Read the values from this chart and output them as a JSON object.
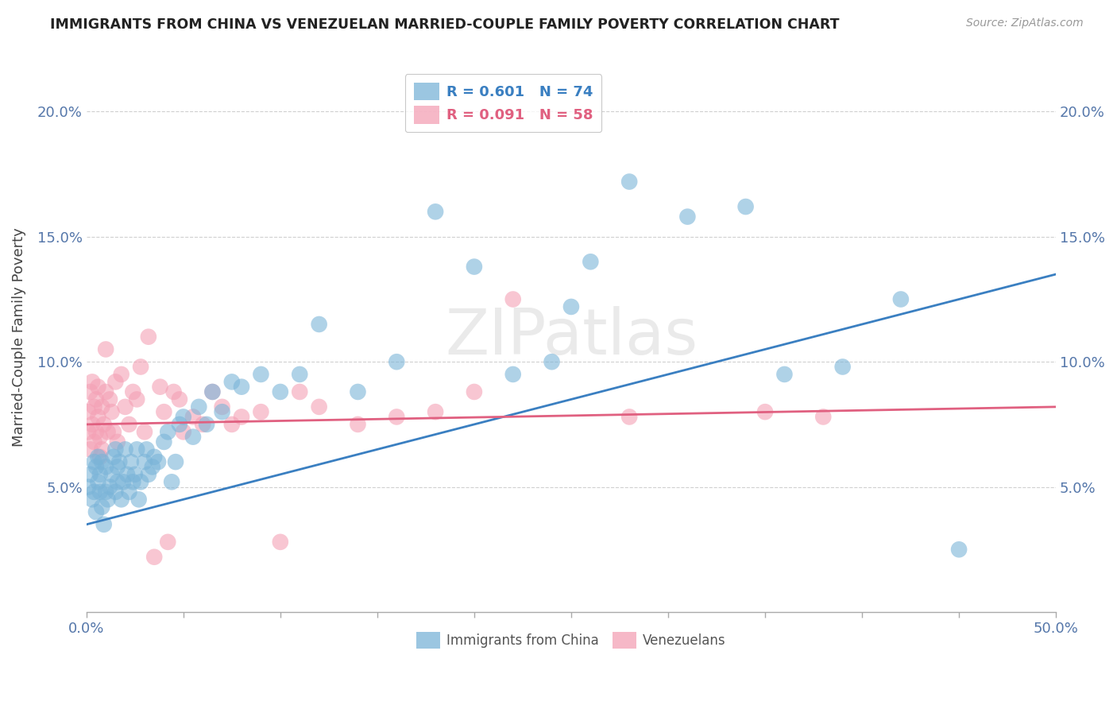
{
  "title": "IMMIGRANTS FROM CHINA VS VENEZUELAN MARRIED-COUPLE FAMILY POVERTY CORRELATION CHART",
  "source": "Source: ZipAtlas.com",
  "ylabel": "Married-Couple Family Poverty",
  "xlim": [
    0.0,
    0.5
  ],
  "ylim": [
    0.0,
    0.22
  ],
  "xticks": [
    0.0,
    0.05,
    0.1,
    0.15,
    0.2,
    0.25,
    0.3,
    0.35,
    0.4,
    0.45,
    0.5
  ],
  "yticks": [
    0.05,
    0.1,
    0.15,
    0.2
  ],
  "ytick_labels": [
    "5.0%",
    "10.0%",
    "15.0%",
    "20.0%"
  ],
  "china_color": "#7ab4d8",
  "venezuela_color": "#f4a0b5",
  "china_line_color": "#3a7fc1",
  "venezuela_line_color": "#e06080",
  "china_R": 0.601,
  "china_N": 74,
  "venezuela_R": 0.091,
  "venezuela_N": 58,
  "legend_label_china": "Immigrants from China",
  "legend_label_venezuela": "Venezuelans",
  "china_trend_start_y": 0.035,
  "china_trend_end_y": 0.135,
  "venezuela_trend_start_y": 0.075,
  "venezuela_trend_end_y": 0.082,
  "china_scatter_x": [
    0.001,
    0.002,
    0.003,
    0.004,
    0.004,
    0.005,
    0.005,
    0.006,
    0.006,
    0.007,
    0.007,
    0.008,
    0.008,
    0.009,
    0.01,
    0.01,
    0.011,
    0.012,
    0.013,
    0.014,
    0.015,
    0.015,
    0.016,
    0.016,
    0.017,
    0.018,
    0.019,
    0.02,
    0.021,
    0.022,
    0.023,
    0.024,
    0.025,
    0.026,
    0.027,
    0.028,
    0.03,
    0.031,
    0.032,
    0.034,
    0.035,
    0.037,
    0.04,
    0.042,
    0.044,
    0.046,
    0.048,
    0.05,
    0.055,
    0.058,
    0.062,
    0.065,
    0.07,
    0.075,
    0.08,
    0.09,
    0.1,
    0.11,
    0.12,
    0.14,
    0.16,
    0.18,
    0.2,
    0.22,
    0.24,
    0.26,
    0.28,
    0.31,
    0.34,
    0.36,
    0.39,
    0.42,
    0.45,
    0.25
  ],
  "china_scatter_y": [
    0.05,
    0.055,
    0.045,
    0.06,
    0.048,
    0.04,
    0.058,
    0.052,
    0.062,
    0.048,
    0.055,
    0.042,
    0.06,
    0.035,
    0.058,
    0.048,
    0.045,
    0.05,
    0.055,
    0.062,
    0.065,
    0.048,
    0.052,
    0.058,
    0.06,
    0.045,
    0.052,
    0.065,
    0.055,
    0.048,
    0.06,
    0.052,
    0.055,
    0.065,
    0.045,
    0.052,
    0.06,
    0.065,
    0.055,
    0.058,
    0.062,
    0.06,
    0.068,
    0.072,
    0.052,
    0.06,
    0.075,
    0.078,
    0.07,
    0.082,
    0.075,
    0.088,
    0.08,
    0.092,
    0.09,
    0.095,
    0.088,
    0.095,
    0.115,
    0.088,
    0.1,
    0.16,
    0.138,
    0.095,
    0.1,
    0.14,
    0.172,
    0.158,
    0.162,
    0.095,
    0.098,
    0.125,
    0.025,
    0.122
  ],
  "venezuela_scatter_x": [
    0.001,
    0.001,
    0.002,
    0.002,
    0.003,
    0.003,
    0.004,
    0.004,
    0.005,
    0.005,
    0.006,
    0.006,
    0.007,
    0.007,
    0.008,
    0.008,
    0.009,
    0.01,
    0.01,
    0.011,
    0.012,
    0.013,
    0.014,
    0.015,
    0.016,
    0.018,
    0.02,
    0.022,
    0.024,
    0.026,
    0.028,
    0.03,
    0.032,
    0.035,
    0.038,
    0.04,
    0.042,
    0.045,
    0.048,
    0.05,
    0.055,
    0.06,
    0.065,
    0.07,
    0.075,
    0.08,
    0.09,
    0.1,
    0.11,
    0.12,
    0.14,
    0.16,
    0.18,
    0.2,
    0.22,
    0.28,
    0.35,
    0.38
  ],
  "venezuela_scatter_y": [
    0.072,
    0.08,
    0.065,
    0.088,
    0.075,
    0.092,
    0.068,
    0.082,
    0.085,
    0.072,
    0.09,
    0.078,
    0.07,
    0.062,
    0.082,
    0.065,
    0.075,
    0.105,
    0.088,
    0.072,
    0.085,
    0.08,
    0.072,
    0.092,
    0.068,
    0.095,
    0.082,
    0.075,
    0.088,
    0.085,
    0.098,
    0.072,
    0.11,
    0.022,
    0.09,
    0.08,
    0.028,
    0.088,
    0.085,
    0.072,
    0.078,
    0.075,
    0.088,
    0.082,
    0.075,
    0.078,
    0.08,
    0.028,
    0.088,
    0.082,
    0.075,
    0.078,
    0.08,
    0.088,
    0.125,
    0.078,
    0.08,
    0.078
  ]
}
